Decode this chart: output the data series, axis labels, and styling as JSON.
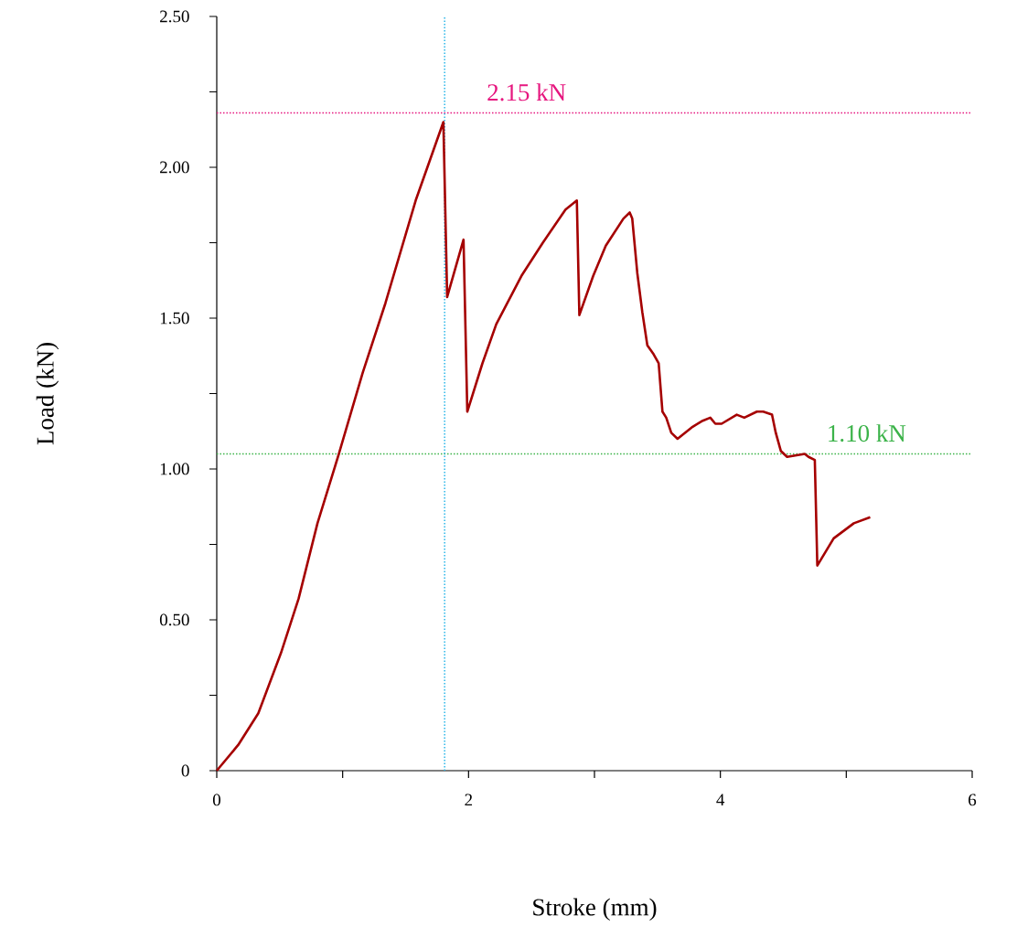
{
  "chart_data": {
    "type": "line",
    "xlabel": "Stroke (mm)",
    "ylabel": "Load (kN)",
    "xlim": [
      0,
      6
    ],
    "ylim": [
      0,
      2.5
    ],
    "xticks": [
      0,
      {
        "value": 1,
        "label": null
      },
      2,
      {
        "value": 3,
        "label": null
      },
      4,
      {
        "value": 5,
        "label": null
      },
      6
    ],
    "yticks": [
      "0",
      {
        "value": 0.25,
        "label": null
      },
      {
        "value": 0.5,
        "label": "0.50"
      },
      {
        "value": 0.75,
        "label": null
      },
      {
        "value": 1,
        "label": "1.00"
      },
      {
        "value": 1.25,
        "label": null
      },
      {
        "value": 1.5,
        "label": "1.50"
      },
      {
        "value": 1.75,
        "label": null
      },
      {
        "value": 2,
        "label": "2.00"
      },
      {
        "value": 2.25,
        "label": null
      },
      {
        "value": 2.5,
        "label": "2.50"
      }
    ],
    "grid": false,
    "ref_lines": [
      {
        "axis": "y",
        "value": 2.18,
        "label": "2.15 kN",
        "color": "#e6177f",
        "line_style": "dotted"
      },
      {
        "axis": "y",
        "value": 1.05,
        "label": "1.10 kN",
        "color": "#3cb34a",
        "line_style": "dotted"
      },
      {
        "axis": "x",
        "value": 1.81,
        "color": "#29b6e8",
        "line_style": "dotted"
      }
    ],
    "series": [
      {
        "color": "#a50000",
        "x": [
          0,
          0.17,
          0.33,
          0.51,
          0.65,
          0.8,
          0.97,
          1.16,
          1.34,
          1.58,
          1.8,
          1.83,
          1.96,
          1.99,
          2.11,
          2.22,
          2.42,
          2.59,
          2.77,
          2.86,
          2.88,
          2.99,
          3.09,
          3.23,
          3.28,
          3.3,
          3.34,
          3.38,
          3.42,
          3.47,
          3.51,
          3.54,
          3.57,
          3.61,
          3.66,
          3.78,
          3.86,
          3.92,
          3.96,
          4.01,
          4.13,
          4.19,
          4.29,
          4.34,
          4.41,
          4.44,
          4.48,
          4.53,
          4.67,
          4.7,
          4.75,
          4.77,
          4.9,
          5.06,
          5.19
        ],
        "values": [
          0,
          0.085,
          0.19,
          0.39,
          0.57,
          0.82,
          1.05,
          1.32,
          1.55,
          1.89,
          2.15,
          1.57,
          1.76,
          1.19,
          1.35,
          1.48,
          1.64,
          1.75,
          1.86,
          1.89,
          1.51,
          1.64,
          1.74,
          1.83,
          1.85,
          1.83,
          1.65,
          1.52,
          1.41,
          1.38,
          1.35,
          1.19,
          1.17,
          1.12,
          1.1,
          1.14,
          1.16,
          1.17,
          1.15,
          1.15,
          1.18,
          1.17,
          1.19,
          1.19,
          1.18,
          1.12,
          1.06,
          1.04,
          1.05,
          1.04,
          1.03,
          0.68,
          0.77,
          0.82,
          0.84
        ]
      }
    ]
  }
}
